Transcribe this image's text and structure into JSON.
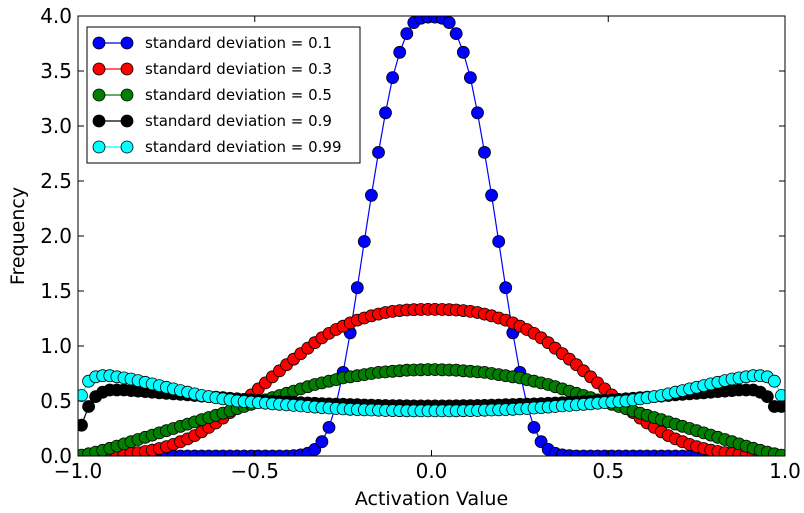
{
  "chart_data": {
    "type": "line",
    "title": "",
    "xlabel": "Activation Value",
    "ylabel": "Frequency",
    "xlim": [
      -1.0,
      1.0
    ],
    "ylim": [
      0.0,
      4.0
    ],
    "x_ticks": [
      "−1.0",
      "−0.5",
      "0.0",
      "0.5",
      "1.0"
    ],
    "y_ticks": [
      "0.0",
      "0.5",
      "1.0",
      "1.5",
      "2.0",
      "2.5",
      "3.0",
      "3.5",
      "4.0"
    ],
    "grid": false,
    "legend_position": "top-left",
    "x": [
      -0.99,
      -0.97,
      -0.95,
      -0.93,
      -0.91,
      -0.89,
      -0.87,
      -0.85,
      -0.83,
      -0.81,
      -0.79,
      -0.77,
      -0.75,
      -0.73,
      -0.71,
      -0.69,
      -0.67,
      -0.65,
      -0.63,
      -0.61,
      -0.59,
      -0.57,
      -0.55,
      -0.53,
      -0.51,
      -0.49,
      -0.47,
      -0.45,
      -0.43,
      -0.41,
      -0.39,
      -0.37,
      -0.35,
      -0.33,
      -0.31,
      -0.29,
      -0.27,
      -0.25,
      -0.23,
      -0.21,
      -0.19,
      -0.17,
      -0.15,
      -0.13,
      -0.11,
      -0.09,
      -0.07,
      -0.05,
      -0.03,
      -0.01,
      0.01,
      0.03,
      0.05,
      0.07,
      0.09,
      0.11,
      0.13,
      0.15,
      0.17,
      0.19,
      0.21,
      0.23,
      0.25,
      0.27,
      0.29,
      0.31,
      0.33,
      0.35,
      0.37,
      0.39,
      0.41,
      0.43,
      0.45,
      0.47,
      0.49,
      0.51,
      0.53,
      0.55,
      0.57,
      0.59,
      0.61,
      0.63,
      0.65,
      0.67,
      0.69,
      0.71,
      0.73,
      0.75,
      0.77,
      0.79,
      0.81,
      0.83,
      0.85,
      0.87,
      0.89,
      0.91,
      0.93,
      0.95,
      0.97,
      0.99
    ],
    "series": [
      {
        "name": "standard deviation = 0.1",
        "color": "#0000ff",
        "values": [
          0,
          0,
          0,
          0,
          0,
          0,
          0,
          0,
          0,
          0,
          0,
          0,
          0,
          0,
          0,
          0,
          0,
          0,
          0,
          0,
          0,
          0,
          0,
          0,
          0,
          0,
          0,
          0,
          0,
          0,
          0.003,
          0.01,
          0.025,
          0.06,
          0.13,
          0.26,
          0.47,
          0.76,
          1.12,
          1.53,
          1.95,
          2.37,
          2.76,
          3.12,
          3.44,
          3.67,
          3.84,
          3.94,
          3.98,
          3.99,
          3.99,
          3.98,
          3.94,
          3.84,
          3.67,
          3.44,
          3.12,
          2.76,
          2.37,
          1.95,
          1.53,
          1.12,
          0.76,
          0.47,
          0.26,
          0.13,
          0.06,
          0.025,
          0.01,
          0.003,
          0,
          0,
          0,
          0,
          0,
          0,
          0,
          0,
          0,
          0,
          0,
          0,
          0,
          0,
          0,
          0,
          0,
          0,
          0,
          0,
          0,
          0,
          0,
          0,
          0,
          0,
          0,
          0,
          0,
          0
        ]
      },
      {
        "name": "standard deviation = 0.3",
        "color": "#ff0000",
        "values": [
          0,
          0,
          0.002,
          0.004,
          0.007,
          0.011,
          0.016,
          0.023,
          0.031,
          0.041,
          0.053,
          0.068,
          0.085,
          0.105,
          0.13,
          0.155,
          0.185,
          0.22,
          0.26,
          0.3,
          0.345,
          0.395,
          0.445,
          0.5,
          0.555,
          0.61,
          0.665,
          0.72,
          0.775,
          0.83,
          0.88,
          0.93,
          0.98,
          1.03,
          1.075,
          1.115,
          1.15,
          1.18,
          1.21,
          1.235,
          1.255,
          1.275,
          1.29,
          1.305,
          1.315,
          1.322,
          1.327,
          1.33,
          1.332,
          1.333,
          1.333,
          1.332,
          1.33,
          1.327,
          1.322,
          1.315,
          1.305,
          1.29,
          1.275,
          1.255,
          1.235,
          1.21,
          1.18,
          1.15,
          1.115,
          1.075,
          1.03,
          0.98,
          0.93,
          0.88,
          0.83,
          0.775,
          0.72,
          0.665,
          0.61,
          0.555,
          0.5,
          0.445,
          0.395,
          0.345,
          0.3,
          0.26,
          0.22,
          0.185,
          0.155,
          0.13,
          0.105,
          0.085,
          0.068,
          0.053,
          0.041,
          0.031,
          0.023,
          0.016,
          0.011,
          0.007,
          0.004,
          0.002,
          0,
          0
        ]
      },
      {
        "name": "standard deviation = 0.5",
        "color": "#007f00",
        "values": [
          0.008,
          0.02,
          0.035,
          0.052,
          0.07,
          0.09,
          0.11,
          0.13,
          0.15,
          0.17,
          0.19,
          0.21,
          0.23,
          0.25,
          0.27,
          0.29,
          0.31,
          0.33,
          0.35,
          0.37,
          0.39,
          0.41,
          0.43,
          0.45,
          0.47,
          0.49,
          0.51,
          0.53,
          0.55,
          0.57,
          0.59,
          0.61,
          0.63,
          0.65,
          0.665,
          0.68,
          0.695,
          0.71,
          0.72,
          0.73,
          0.74,
          0.75,
          0.76,
          0.765,
          0.77,
          0.775,
          0.78,
          0.782,
          0.784,
          0.785,
          0.785,
          0.784,
          0.782,
          0.78,
          0.775,
          0.77,
          0.765,
          0.76,
          0.75,
          0.74,
          0.73,
          0.72,
          0.71,
          0.695,
          0.68,
          0.665,
          0.65,
          0.63,
          0.61,
          0.59,
          0.57,
          0.55,
          0.53,
          0.51,
          0.49,
          0.47,
          0.45,
          0.43,
          0.41,
          0.39,
          0.37,
          0.35,
          0.33,
          0.31,
          0.29,
          0.27,
          0.25,
          0.23,
          0.21,
          0.19,
          0.17,
          0.15,
          0.13,
          0.11,
          0.09,
          0.07,
          0.052,
          0.035,
          0.02,
          0.008
        ]
      },
      {
        "name": "standard deviation = 0.9",
        "color": "#000000",
        "values": [
          0.28,
          0.45,
          0.54,
          0.58,
          0.6,
          0.6,
          0.6,
          0.595,
          0.59,
          0.585,
          0.58,
          0.575,
          0.57,
          0.565,
          0.56,
          0.555,
          0.55,
          0.545,
          0.54,
          0.535,
          0.53,
          0.525,
          0.52,
          0.515,
          0.51,
          0.505,
          0.5,
          0.497,
          0.494,
          0.491,
          0.488,
          0.485,
          0.482,
          0.479,
          0.476,
          0.474,
          0.472,
          0.47,
          0.468,
          0.466,
          0.464,
          0.462,
          0.46,
          0.459,
          0.458,
          0.457,
          0.456,
          0.455,
          0.455,
          0.455,
          0.455,
          0.455,
          0.455,
          0.456,
          0.457,
          0.458,
          0.459,
          0.46,
          0.462,
          0.464,
          0.466,
          0.468,
          0.47,
          0.472,
          0.474,
          0.476,
          0.479,
          0.482,
          0.485,
          0.488,
          0.491,
          0.494,
          0.497,
          0.5,
          0.505,
          0.51,
          0.515,
          0.52,
          0.525,
          0.53,
          0.535,
          0.54,
          0.545,
          0.55,
          0.555,
          0.56,
          0.565,
          0.57,
          0.575,
          0.58,
          0.585,
          0.59,
          0.595,
          0.6,
          0.6,
          0.6,
          0.58,
          0.54,
          0.45,
          0.45
        ]
      },
      {
        "name": "standard deviation = 0.99",
        "color": "#00ffff",
        "values": [
          0.55,
          0.68,
          0.72,
          0.73,
          0.73,
          0.72,
          0.71,
          0.7,
          0.685,
          0.67,
          0.655,
          0.64,
          0.625,
          0.61,
          0.595,
          0.58,
          0.565,
          0.55,
          0.54,
          0.53,
          0.52,
          0.51,
          0.5,
          0.495,
          0.49,
          0.485,
          0.48,
          0.475,
          0.47,
          0.465,
          0.46,
          0.455,
          0.45,
          0.445,
          0.44,
          0.436,
          0.432,
          0.428,
          0.425,
          0.422,
          0.42,
          0.418,
          0.416,
          0.414,
          0.413,
          0.412,
          0.411,
          0.41,
          0.41,
          0.41,
          0.41,
          0.41,
          0.41,
          0.411,
          0.412,
          0.413,
          0.414,
          0.416,
          0.418,
          0.42,
          0.422,
          0.425,
          0.428,
          0.432,
          0.436,
          0.44,
          0.445,
          0.45,
          0.455,
          0.46,
          0.465,
          0.47,
          0.475,
          0.48,
          0.485,
          0.49,
          0.495,
          0.5,
          0.51,
          0.52,
          0.53,
          0.54,
          0.55,
          0.565,
          0.58,
          0.595,
          0.61,
          0.625,
          0.64,
          0.655,
          0.67,
          0.685,
          0.7,
          0.71,
          0.72,
          0.73,
          0.73,
          0.72,
          0.68,
          0.55
        ]
      }
    ]
  }
}
